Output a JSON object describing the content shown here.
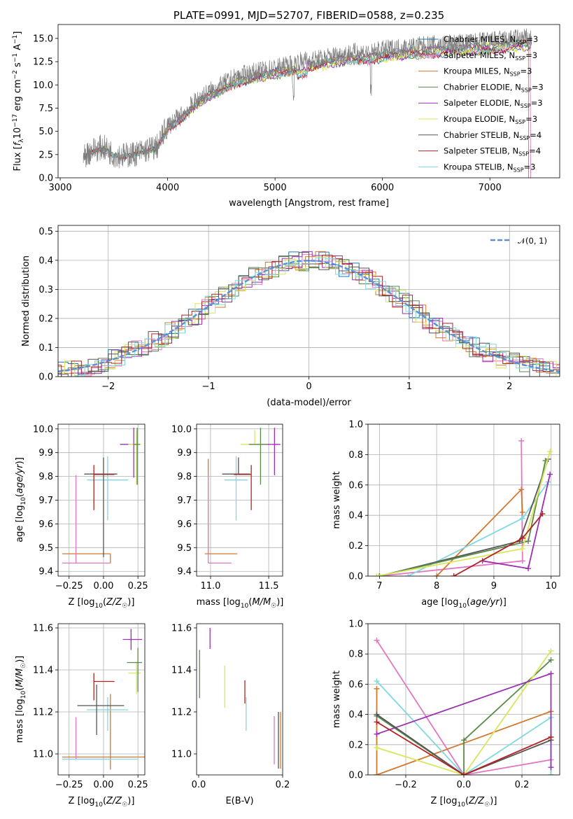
{
  "chart_data": [
    {
      "id": "spectrum",
      "type": "line",
      "title": "PLATE=0991, MJD=52707, FIBERID=0588, z=0.235",
      "xlabel": "wavelength [Angstrom, rest frame]",
      "ylabel": "Flux [f_λ 10^-17 erg cm^-2 s^-1 A^-1]",
      "xlim": [
        2980,
        7650
      ],
      "ylim": [
        0,
        16.5
      ],
      "xticks": [
        3000,
        4000,
        5000,
        6000,
        7000
      ],
      "yticks": [
        0.0,
        2.5,
        5.0,
        7.5,
        10.0,
        12.5,
        15.0
      ],
      "data_anchor": {
        "x": [
          3200,
          3300,
          3400,
          3500,
          3600,
          3700,
          3800,
          3900,
          4000,
          4100,
          4200,
          4300,
          4400,
          4500,
          4600,
          4700,
          4800,
          4900,
          5000,
          5100,
          5200,
          5300,
          5400,
          5500,
          5600,
          5700,
          5800,
          5900,
          6000,
          6100,
          6200,
          6300,
          6400,
          6500,
          6600,
          6700,
          6800,
          6900,
          7000,
          7100,
          7200,
          7300,
          7400
        ],
        "y": [
          2.2,
          3.0,
          3.3,
          2.5,
          2.4,
          2.6,
          3.0,
          3.3,
          5.6,
          6.4,
          7.5,
          8.6,
          9.3,
          9.9,
          10.6,
          11.0,
          11.3,
          11.5,
          11.8,
          12.0,
          12.4,
          12.6,
          12.7,
          13.0,
          13.2,
          13.4,
          13.5,
          13.5,
          13.7,
          13.9,
          14.0,
          14.1,
          14.2,
          14.3,
          14.4,
          14.4,
          14.5,
          14.6,
          14.7,
          14.8,
          14.9,
          15.0,
          15.0
        ]
      },
      "grid": false,
      "legend_position": "top-right",
      "legend": [
        {
          "label": "Chabrier MILES, N",
          "sub": "SSP",
          "suffix": "=3",
          "color": "#1f77b4"
        },
        {
          "label": "Salpeter MILES, N",
          "sub": "SSP",
          "suffix": "=3",
          "color": "#e377c2"
        },
        {
          "label": "Kroupa MILES, N",
          "sub": "SSP",
          "suffix": "=3",
          "color": "#d2782d"
        },
        {
          "label": "Chabrier ELODIE, N",
          "sub": "SSP",
          "suffix": "=3",
          "color": "#5a8a4a"
        },
        {
          "label": "Salpeter ELODIE, N",
          "sub": "SSP",
          "suffix": "=3",
          "color": "#9b30b0"
        },
        {
          "label": "Kroupa ELODIE, N",
          "sub": "SSP",
          "suffix": "=3",
          "color": "#d8e65a"
        },
        {
          "label": "Chabrier STELIB, N",
          "sub": "SSP",
          "suffix": "=4",
          "color": "#555555"
        },
        {
          "label": "Salpeter STELIB, N",
          "sub": "SSP",
          "suffix": "=4",
          "color": "#b22222"
        },
        {
          "label": "Kroupa STELIB, N",
          "sub": "SSP",
          "suffix": "=3",
          "color": "#7fd8e0"
        }
      ]
    },
    {
      "id": "residuals",
      "type": "histogram",
      "xlabel": "(data-model)/error",
      "ylabel": "Normed distribution",
      "xlim": [
        -2.5,
        2.5
      ],
      "ylim": [
        0,
        0.52
      ],
      "xticks": [
        -2,
        -1,
        0,
        1,
        2
      ],
      "yticks": [
        0.0,
        0.1,
        0.2,
        0.3,
        0.4,
        0.5
      ],
      "grid": true,
      "legend_position": "top-right",
      "reference_curve": {
        "label": "𝒩(0, 1)",
        "color": "#5b8fd6",
        "style": "dashed"
      },
      "bin_width": 0.1
    },
    {
      "id": "age-vs-Z",
      "type": "errorbar",
      "xlabel": "Z [log10(Z/Z☉)]",
      "ylabel": "age [log10(age/yr)]",
      "xlim": [
        -0.33,
        0.3
      ],
      "ylim": [
        9.38,
        10.02
      ],
      "xticks": [
        -0.25,
        0.0,
        0.25
      ],
      "yticks": [
        9.4,
        9.5,
        9.6,
        9.7,
        9.8,
        9.9,
        10.0
      ],
      "grid": true,
      "points": [
        {
          "x": 0.05,
          "y": 9.474,
          "xerr": [
            0.35,
            0.0
          ],
          "yerr": [
            0.04,
            0.0
          ],
          "color": "#d2782d"
        },
        {
          "x": -0.2,
          "y": 9.435,
          "xerr": [
            0.1,
            0.25
          ],
          "yerr": [
            0.0,
            0.37
          ],
          "color": "#e377c2"
        },
        {
          "x": 0.03,
          "y": 9.785,
          "xerr": [
            0.15,
            0.15
          ],
          "yerr": [
            0.17,
            0.1
          ],
          "color": "#7fd8e0"
        },
        {
          "x": 0.0,
          "y": 9.81,
          "xerr": [
            0.14,
            0.1
          ],
          "yerr": [
            0.35,
            0.07
          ],
          "color": "#555555"
        },
        {
          "x": -0.07,
          "y": 9.808,
          "xerr": [
            0.0,
            0.15
          ],
          "yerr": [
            0.15,
            0.04
          ],
          "color": "#b22222"
        },
        {
          "x": 0.22,
          "y": 9.935,
          "xerr": [
            0.1,
            0.05
          ],
          "yerr": [
            0.14,
            0.07
          ],
          "color": "#9b30b0"
        },
        {
          "x": 0.24,
          "y": 9.935,
          "xerr": [
            0.06,
            0.03
          ],
          "yerr": [
            0.17,
            0.06
          ],
          "color": "#d8e65a"
        },
        {
          "x": 0.245,
          "y": 9.935,
          "xerr": [
            0.03,
            0.02
          ],
          "yerr": [
            0.17,
            0.07
          ],
          "color": "#5a8a4a"
        }
      ]
    },
    {
      "id": "age-vs-mass",
      "type": "errorbar",
      "xlabel": "mass [log10(M/M☉)]",
      "xlim": [
        10.88,
        11.62
      ],
      "ylim": [
        9.38,
        10.02
      ],
      "xticks": [
        11.0,
        11.5
      ],
      "yticks": [
        9.4,
        9.5,
        9.6,
        9.7,
        9.8,
        9.9,
        10.0
      ],
      "grid": true,
      "points": [
        {
          "x": 10.98,
          "y": 9.474,
          "xerr": [
            0.03,
            0.25
          ],
          "yerr": [
            0.0,
            0.4
          ],
          "color": "#d2782d"
        },
        {
          "x": 10.98,
          "y": 9.435,
          "xerr": [
            0.0,
            0.2
          ],
          "yerr": [
            0.0,
            0.37
          ],
          "color": "#e377c2"
        },
        {
          "x": 11.22,
          "y": 9.785,
          "xerr": [
            0.1,
            0.1
          ],
          "yerr": [
            0.17,
            0.1
          ],
          "color": "#7fd8e0"
        },
        {
          "x": 11.24,
          "y": 9.81,
          "xerr": [
            0.14,
            0.1
          ],
          "yerr": [
            0.0,
            0.07
          ],
          "color": "#555555"
        },
        {
          "x": 11.35,
          "y": 9.808,
          "xerr": [
            0.15,
            0.0
          ],
          "yerr": [
            0.15,
            0.04
          ],
          "color": "#b22222"
        },
        {
          "x": 11.55,
          "y": 9.935,
          "xerr": [
            0.15,
            0.05
          ],
          "yerr": [
            0.13,
            0.07
          ],
          "color": "#9b30b0"
        },
        {
          "x": 11.38,
          "y": 9.935,
          "xerr": [
            0.12,
            0.1
          ],
          "yerr": [
            0.0,
            0.06
          ],
          "color": "#d8e65a"
        },
        {
          "x": 11.43,
          "y": 9.935,
          "xerr": [
            0.1,
            0.05
          ],
          "yerr": [
            0.17,
            0.07
          ],
          "color": "#5a8a4a"
        }
      ]
    },
    {
      "id": "mass-weight-vs-age",
      "type": "line",
      "xlabel": "age [log10(age/yr)]",
      "ylabel": "mass weight",
      "xlim": [
        6.8,
        10.15
      ],
      "ylim": [
        0.0,
        1.0
      ],
      "xticks": [
        7,
        8,
        9,
        10
      ],
      "yticks": [
        0.0,
        0.2,
        0.4,
        0.6,
        0.8,
        1.0
      ],
      "grid": true,
      "series": [
        {
          "color": "#e377c2",
          "x": [
            7.0,
            9.5,
            9.48
          ],
          "y": [
            0.0,
            0.1,
            0.89
          ]
        },
        {
          "color": "#d2782d",
          "x": [
            8.0,
            9.48,
            9.5
          ],
          "y": [
            0.0,
            0.57,
            0.42
          ]
        },
        {
          "color": "#7fd8e0",
          "x": [
            7.5,
            9.5,
            9.95
          ],
          "y": [
            0.0,
            0.38,
            0.62
          ]
        },
        {
          "color": "#555555",
          "x": [
            7.0,
            9.45,
            9.95
          ],
          "y": [
            0.0,
            0.23,
            0.77
          ]
        },
        {
          "color": "#5a8a4a",
          "x": [
            7.0,
            9.6,
            9.9
          ],
          "y": [
            0.0,
            0.23,
            0.76
          ]
        },
        {
          "color": "#d8e65a",
          "x": [
            6.95,
            9.5,
            9.98
          ],
          "y": [
            0.0,
            0.18,
            0.82
          ]
        },
        {
          "color": "#9b30b0",
          "x": [
            8.8,
            9.6,
            9.98
          ],
          "y": [
            0.1,
            0.05,
            0.67
          ]
        },
        {
          "color": "#b22222",
          "x": [
            8.3,
            9.5,
            9.85
          ],
          "y": [
            0.0,
            0.25,
            0.41
          ]
        }
      ]
    },
    {
      "id": "mass-vs-Z",
      "type": "errorbar",
      "xlabel": "Z [log10(Z/Z☉)]",
      "ylabel": "mass [log10(M/M☉)]",
      "xlim": [
        -0.33,
        0.3
      ],
      "ylim": [
        10.9,
        11.62
      ],
      "xticks": [
        -0.25,
        0.0,
        0.25
      ],
      "yticks": [
        11.0,
        11.2,
        11.4,
        11.6
      ],
      "grid": true,
      "points": [
        {
          "x": 0.05,
          "y": 10.985,
          "xerr": [
            0.35,
            0.25
          ],
          "yerr": [
            0.06,
            0.3
          ],
          "color": "#d2782d"
        },
        {
          "x": -0.2,
          "y": 10.975,
          "xerr": [
            0.1,
            0.25
          ],
          "yerr": [
            0.0,
            0.2
          ],
          "color": "#e377c2"
        },
        {
          "x": 0.05,
          "y": 10.975,
          "xerr": [
            0.35,
            0.2
          ],
          "yerr": [
            0.0,
            0.0
          ],
          "color": "#7fd8e0"
        },
        {
          "x": 0.03,
          "y": 11.21,
          "xerr": [
            0.15,
            0.15
          ],
          "yerr": [
            0.1,
            0.06
          ],
          "color": "#7fd8e0"
        },
        {
          "x": -0.05,
          "y": 11.23,
          "xerr": [
            0.14,
            0.2
          ],
          "yerr": [
            0.14,
            0.1
          ],
          "color": "#555555"
        },
        {
          "x": -0.07,
          "y": 11.345,
          "xerr": [
            0.0,
            0.15
          ],
          "yerr": [
            0.09,
            0.04
          ],
          "color": "#b22222"
        },
        {
          "x": 0.2,
          "y": 11.545,
          "xerr": [
            0.06,
            0.08
          ],
          "yerr": [
            0.05,
            0.05
          ],
          "color": "#9b30b0"
        },
        {
          "x": 0.24,
          "y": 11.385,
          "xerr": [
            0.06,
            0.03
          ],
          "yerr": [
            0.1,
            0.05
          ],
          "color": "#d8e65a"
        },
        {
          "x": 0.25,
          "y": 11.435,
          "xerr": [
            0.08,
            0.03
          ],
          "yerr": [
            0.14,
            0.07
          ],
          "color": "#5a8a4a"
        }
      ]
    },
    {
      "id": "mass-vs-EBV",
      "type": "errorbar",
      "xlabel": "E(B-V)",
      "xlim": [
        -0.005,
        0.2
      ],
      "ylim": [
        10.9,
        11.62
      ],
      "xticks": [
        0.0,
        0.2
      ],
      "yticks": [
        11.0,
        11.2,
        11.4,
        11.6
      ],
      "grid": false,
      "points": [
        {
          "x": 0.002,
          "y": 11.385,
          "yerr": [
            0.12,
            0.11
          ],
          "color": "#5a8a4a"
        },
        {
          "x": 0.027,
          "y": 11.55,
          "yerr": [
            0.05,
            0.05
          ],
          "color": "#9b30b0"
        },
        {
          "x": 0.062,
          "y": 11.32,
          "yerr": [
            0.1,
            0.1
          ],
          "color": "#d8e65a"
        },
        {
          "x": 0.11,
          "y": 11.31,
          "yerr": [
            0.07,
            0.04
          ],
          "color": "#b22222"
        },
        {
          "x": 0.113,
          "y": 11.21,
          "yerr": [
            0.1,
            0.06
          ],
          "color": "#7fd8e0"
        },
        {
          "x": 0.18,
          "y": 11.07,
          "yerr": [
            0.12,
            0.11
          ],
          "color": "#e377c2"
        },
        {
          "x": 0.19,
          "y": 11.05,
          "yerr": [
            0.12,
            0.15
          ],
          "color": "#555555"
        },
        {
          "x": 0.195,
          "y": 11.05,
          "yerr": [
            0.12,
            0.15
          ],
          "color": "#d2782d"
        }
      ]
    },
    {
      "id": "mass-weight-vs-Z",
      "type": "line",
      "xlabel": "Z [log10(Z/Z☉)]",
      "ylabel": "mass weight",
      "xlim": [
        -0.33,
        0.33
      ],
      "ylim": [
        0.0,
        1.0
      ],
      "xticks": [
        -0.2,
        0.0,
        0.2
      ],
      "yticks": [
        0.0,
        0.2,
        0.4,
        0.6,
        0.8,
        1.0
      ],
      "grid": true,
      "series": [
        {
          "color": "#e377c2",
          "x": [
            -0.3,
            0.0,
            0.3,
            0.3
          ],
          "y": [
            0.89,
            0.0,
            0.1,
            0.0
          ]
        },
        {
          "color": "#d2782d",
          "x": [
            -0.3,
            -0.3,
            0.3
          ],
          "y": [
            0.57,
            0.0,
            0.42
          ]
        },
        {
          "color": "#7fd8e0",
          "x": [
            -0.3,
            0.0,
            0.3,
            0.3
          ],
          "y": [
            0.62,
            0.0,
            0.38,
            0.0
          ]
        },
        {
          "color": "#5a8a4a",
          "x": [
            -0.3,
            0.0,
            0.0,
            0.3
          ],
          "y": [
            0.39,
            0.0,
            0.23,
            0.76
          ]
        },
        {
          "color": "#d8e65a",
          "x": [
            -0.3,
            0.0,
            0.3
          ],
          "y": [
            0.18,
            0.0,
            0.82
          ]
        },
        {
          "color": "#9b30b0",
          "x": [
            -0.3,
            0.3,
            0.3
          ],
          "y": [
            0.27,
            0.67,
            0.05
          ]
        },
        {
          "color": "#555555",
          "x": [
            -0.3,
            0.0,
            0.3
          ],
          "y": [
            0.4,
            0.0,
            0.23
          ]
        },
        {
          "color": "#b22222",
          "x": [
            -0.3,
            0.0,
            0.3
          ],
          "y": [
            0.35,
            0.0,
            0.25
          ]
        }
      ]
    }
  ],
  "labels": {
    "title": "PLATE=0991, MJD=52707, FIBERID=0588, z=0.235",
    "spec_xlabel": "wavelength [Angstrom, rest frame]",
    "hist_xlabel": "(data-model)/error",
    "hist_ylabel": "Normed distribution",
    "normal_label": "𝒩(0, 1)",
    "mass_weight": "mass weight",
    "ebv": "E(B-V)"
  }
}
